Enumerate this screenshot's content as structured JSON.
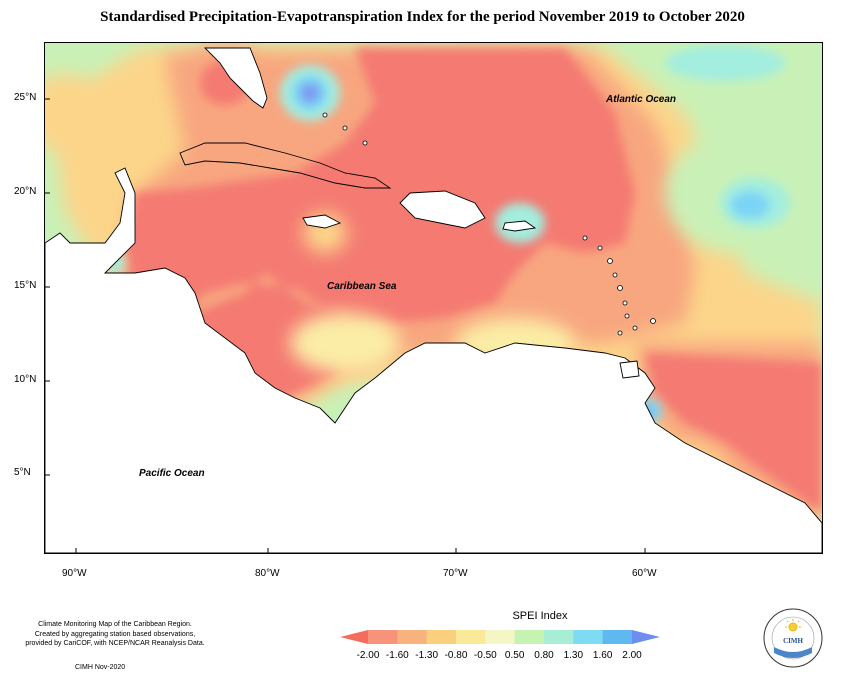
{
  "title": "Standardised Precipitation-Evapotranspiration Index for the period November 2019 to October 2020",
  "labels": {
    "atlantic": "Atlantic Ocean",
    "caribbean": "Caribbean Sea",
    "pacific": "Pacific Ocean"
  },
  "latitude_ticks": [
    "25°N",
    "20°N",
    "15°N",
    "10°N",
    "5°N"
  ],
  "longitude_ticks": [
    "90°W",
    "80°W",
    "70°W",
    "60°W"
  ],
  "legend": {
    "title": "SPEI Index",
    "values": [
      "-2.00",
      "-1.60",
      "-1.30",
      "-0.80",
      "-0.50",
      "0.50",
      "0.80",
      "1.30",
      "1.60",
      "2.00"
    ],
    "colors": [
      "#f46d5c",
      "#f6937a",
      "#f8b27e",
      "#fad07e",
      "#fbe99a",
      "#f4f6c6",
      "#c6f2b2",
      "#a8eed7",
      "#7edbf1",
      "#5fb8f0",
      "#6d8ef0"
    ]
  },
  "footnote": {
    "line1": "Climate Monitoring Map of the Caribbean Region.",
    "line2": "Created by aggregating station based observations,",
    "line3": "provided by CariCOF, with NCEP/NCAR Reanalysis Data.",
    "credit": "CIMH Nov-2020"
  },
  "logo": {
    "text": "CIMH"
  },
  "colors": {
    "very_dry": "#f47a72",
    "dry": "#f8a67f",
    "moderately_dry": "#fcd58a",
    "slightly_dry": "#fbeda6",
    "normal": "#c9f1b7",
    "wet": "#a3eedf",
    "very_wet": "#7ad4f5",
    "extremely_wet": "#7e98f2",
    "land": "#ffffff"
  }
}
